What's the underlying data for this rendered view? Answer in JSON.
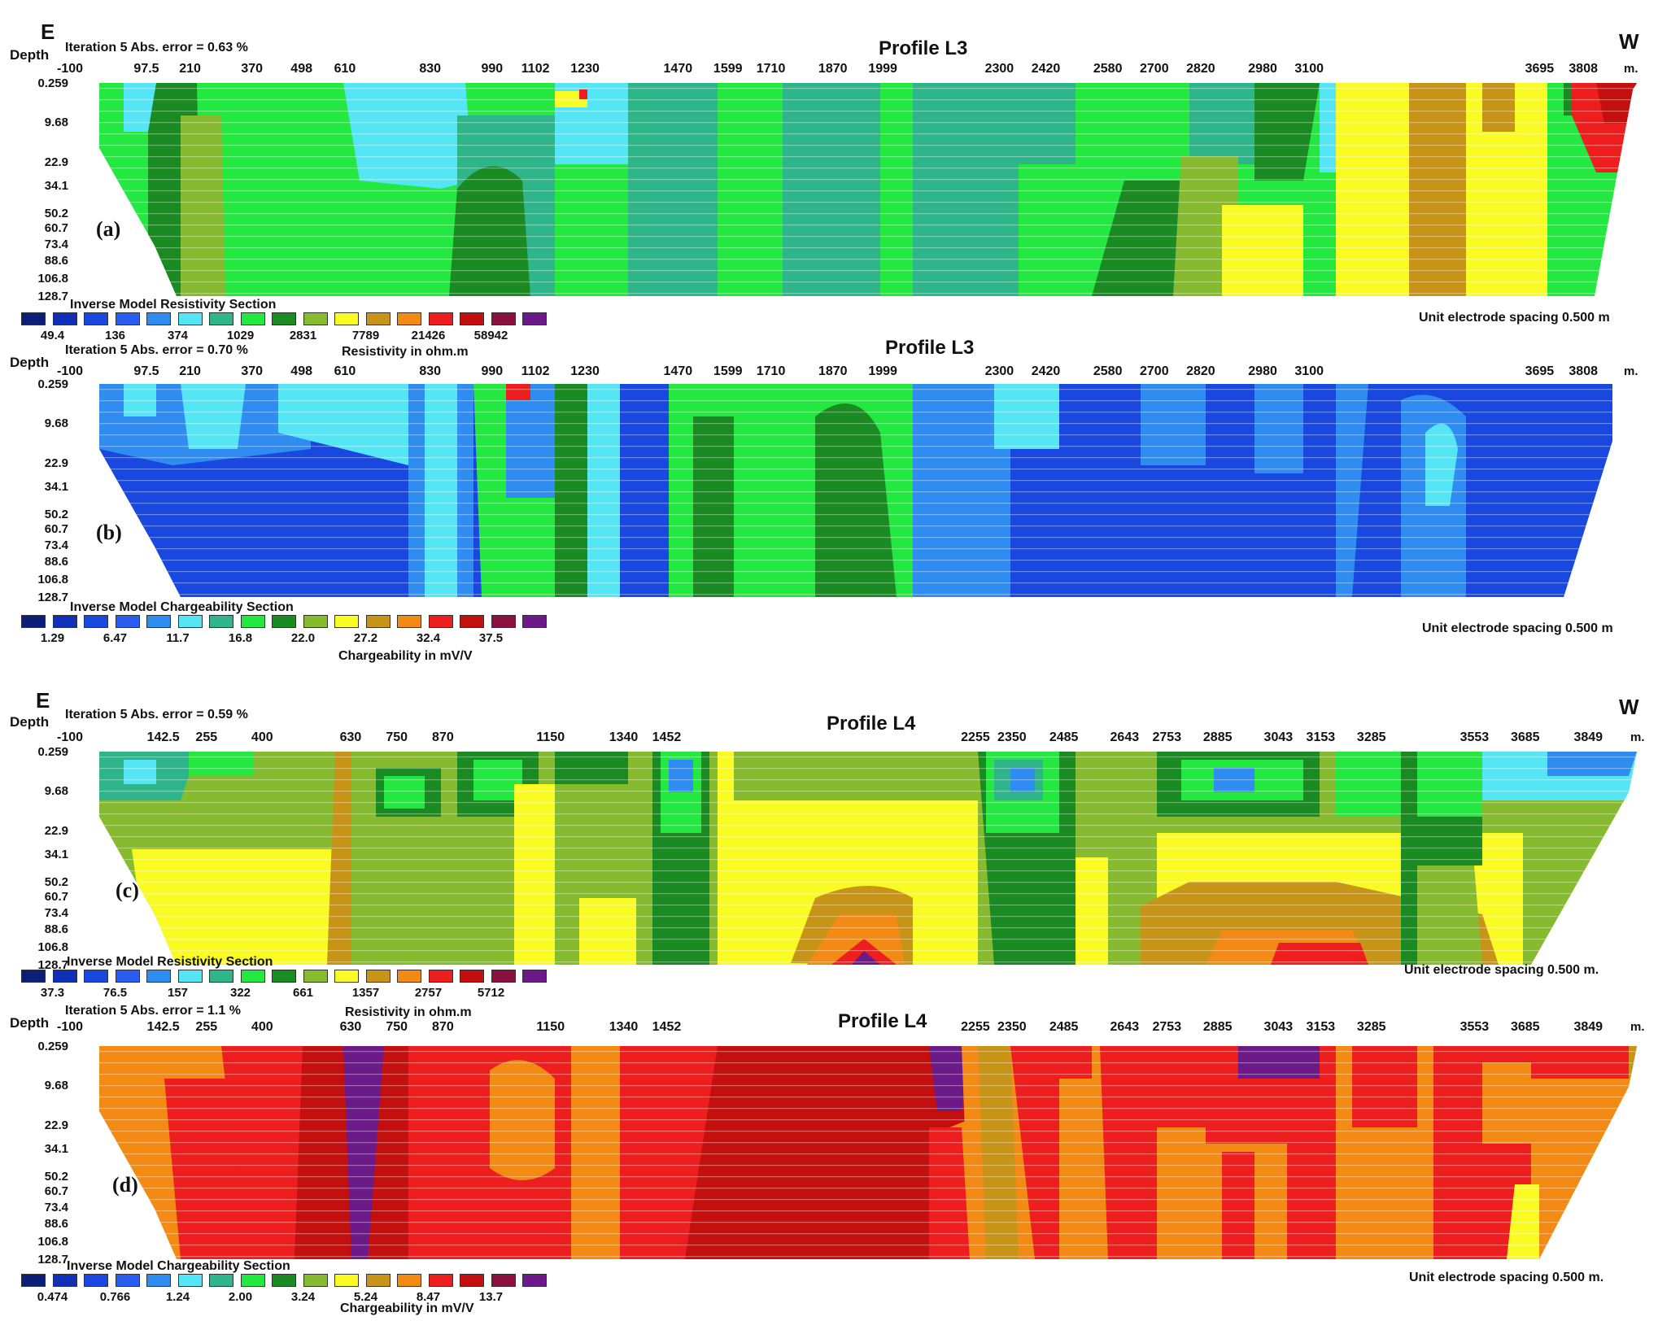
{
  "palette": [
    "#0b1f78",
    "#1030b8",
    "#1848e0",
    "#2a5cf0",
    "#2f8cf0",
    "#55e6f5",
    "#2fb58a",
    "#22e840",
    "#1a8a22",
    "#86bb30",
    "#fbfb24",
    "#c89418",
    "#f28a14",
    "#ee1e1e",
    "#c40f0f",
    "#8a1040",
    "#6c1a8a"
  ],
  "chart_data": [
    {
      "type": "heatmap",
      "panel_letter": "(a)",
      "title": "Profile L3",
      "left_dir": "E",
      "right_dir": "W",
      "ylabel": "Depth",
      "iteration_text": "Iteration 5 Abs.  error = 0.63 %",
      "x_ticks": [
        "-100",
        "97.5",
        "210",
        "370",
        "498",
        "610",
        "830",
        "990",
        "1102",
        "1230",
        "1470",
        "1599",
        "1710",
        "1870",
        "1999",
        "2300",
        "2420",
        "2580",
        "2700",
        "2820",
        "2980",
        "3100",
        "3695",
        "3808"
      ],
      "x_unit": "m.",
      "y_ticks": [
        "0.259",
        "9.68",
        "22.9",
        "34.1",
        "50.2",
        "60.7",
        "73.4",
        "88.6",
        "106.8",
        "128.7"
      ],
      "section_title": "Inverse Model Resistivity Section",
      "scale_values": [
        "49.4",
        "136",
        "374",
        "1029",
        "2831",
        "7789",
        "21426",
        "58942"
      ],
      "scale_label": "Resistivity in ohm.m",
      "unit_text": "Unit electrode spacing 0.500 m",
      "ylim": [
        0.259,
        128.7
      ],
      "xlim": [
        -100,
        3900
      ]
    },
    {
      "type": "heatmap",
      "panel_letter": "(b)",
      "title": "Profile L3",
      "left_dir": "",
      "right_dir": "",
      "ylabel": "Depth",
      "iteration_text": "Iteration 5 Abs.  error = 0.70 %",
      "x_ticks": [
        "-100",
        "97.5",
        "210",
        "370",
        "498",
        "610",
        "830",
        "990",
        "1102",
        "1230",
        "1470",
        "1599",
        "1710",
        "1870",
        "1999",
        "2300",
        "2420",
        "2580",
        "2700",
        "2820",
        "2980",
        "3100",
        "3695",
        "3808"
      ],
      "x_unit": "m.",
      "y_ticks": [
        "0.259",
        "9.68",
        "22.9",
        "34.1",
        "50.2",
        "60.7",
        "73.4",
        "88.6",
        "106.8",
        "128.7"
      ],
      "section_title": "Inverse Model Chargeability Section",
      "scale_values": [
        "1.29",
        "6.47",
        "11.7",
        "16.8",
        "22.0",
        "27.2",
        "32.4",
        "37.5"
      ],
      "scale_label": "Chargeability in mV/V",
      "unit_text": "Unit electrode spacing 0.500 m",
      "ylim": [
        0.259,
        128.7
      ],
      "xlim": [
        -100,
        3900
      ]
    },
    {
      "type": "heatmap",
      "panel_letter": "(c)",
      "title": "Profile L4",
      "left_dir": "E",
      "right_dir": "W",
      "ylabel": "Depth",
      "iteration_text": "Iteration 5 Abs.  error = 0.59 %",
      "x_ticks": [
        "-100",
        "142.5",
        "255",
        "400",
        "630",
        "750",
        "870",
        "1150",
        "1340",
        "1452",
        "2255",
        "2350",
        "2485",
        "2643",
        "2753",
        "2885",
        "3043",
        "3153",
        "3285",
        "3553",
        "3685",
        "3849"
      ],
      "x_unit": "m.",
      "y_ticks": [
        "0.259",
        "9.68",
        "22.9",
        "34.1",
        "50.2",
        "60.7",
        "73.4",
        "88.6",
        "106.8",
        "128.7"
      ],
      "section_title": "Inverse Model Resistivity Section",
      "scale_values": [
        "37.3",
        "76.5",
        "157",
        "322",
        "661",
        "1357",
        "2757",
        "5712"
      ],
      "scale_label": "Resistivity in ohm.m",
      "unit_text": "Unit electrode spacing 0.500 m.",
      "ylim": [
        0.259,
        128.7
      ],
      "xlim": [
        -100,
        3950
      ]
    },
    {
      "type": "heatmap",
      "panel_letter": "(d)",
      "title": "Profile L4",
      "left_dir": "",
      "right_dir": "",
      "ylabel": "Depth",
      "iteration_text": "Iteration 5 Abs.  error = 1.1 %",
      "x_ticks": [
        "-100",
        "142.5",
        "255",
        "400",
        "630",
        "750",
        "870",
        "1150",
        "1340",
        "1452",
        "2255",
        "2350",
        "2485",
        "2643",
        "2753",
        "2885",
        "3043",
        "3153",
        "3285",
        "3553",
        "3685",
        "3849"
      ],
      "x_unit": "m.",
      "y_ticks": [
        "0.259",
        "9.68",
        "22.9",
        "34.1",
        "50.2",
        "60.7",
        "73.4",
        "88.6",
        "106.8",
        "128.7"
      ],
      "section_title": "Inverse Model Chargeability Section",
      "scale_values": [
        "0.474",
        "0.766",
        "1.24",
        "2.00",
        "3.24",
        "5.24",
        "8.47",
        "13.7"
      ],
      "scale_label": "Chargeability in mV/V",
      "unit_text": "Unit electrode spacing 0.500 m.",
      "ylim": [
        0.259,
        128.7
      ],
      "xlim": [
        -100,
        3950
      ]
    }
  ]
}
